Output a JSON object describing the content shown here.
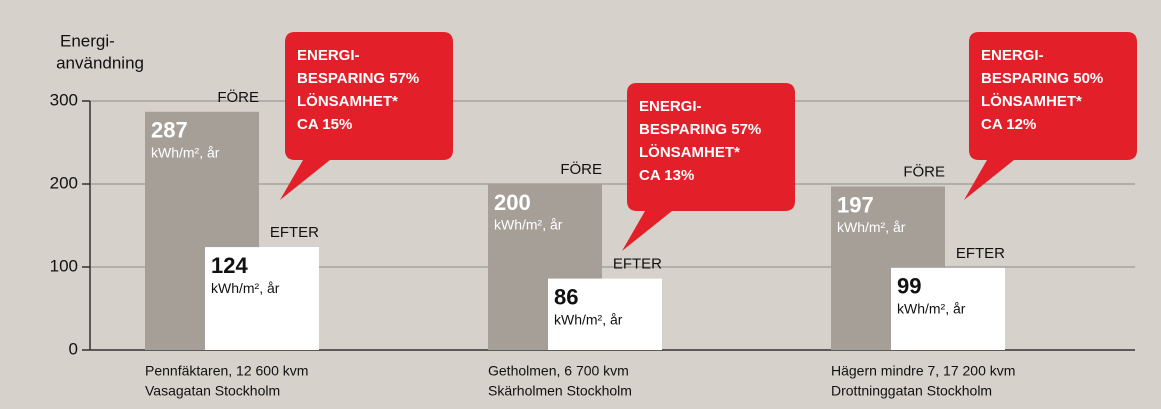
{
  "chart_data": {
    "type": "bar",
    "ylabel": [
      "Energi-",
      "användning"
    ],
    "categories": [
      [
        "Pennfäktaren, 12 600 kvm",
        "Vasagatan Stockholm"
      ],
      [
        "Getholmen, 6 700 kvm",
        "Skärholmen Stockholm"
      ],
      [
        "Hägern mindre 7, 17 200 kvm",
        "Drottninggatan Stockholm"
      ]
    ],
    "unit": "kWh/m², år",
    "series": [
      {
        "name": "FÖRE",
        "color": "#a59f98",
        "values": [
          287,
          200,
          197
        ]
      },
      {
        "name": "EFTER",
        "color": "#ffffff",
        "values": [
          124,
          86,
          99
        ]
      }
    ],
    "annotations": [
      {
        "lines": [
          "ENERGI-",
          "BESPARING 57%",
          "LÖNSAMHET*",
          "CA 15%"
        ],
        "color": "#e3202a"
      },
      {
        "lines": [
          "ENERGI-",
          "BESPARING 57%",
          "LÖNSAMHET*",
          "CA 13%"
        ],
        "color": "#e3202a"
      },
      {
        "lines": [
          "ENERGI-",
          "BESPARING 50%",
          "LÖNSAMHET*",
          "CA 12%"
        ],
        "color": "#e3202a"
      }
    ],
    "ylim": [
      0,
      300
    ],
    "yticks": [
      0,
      100,
      200,
      300
    ],
    "grid": true,
    "background": "#d6d1ca"
  }
}
